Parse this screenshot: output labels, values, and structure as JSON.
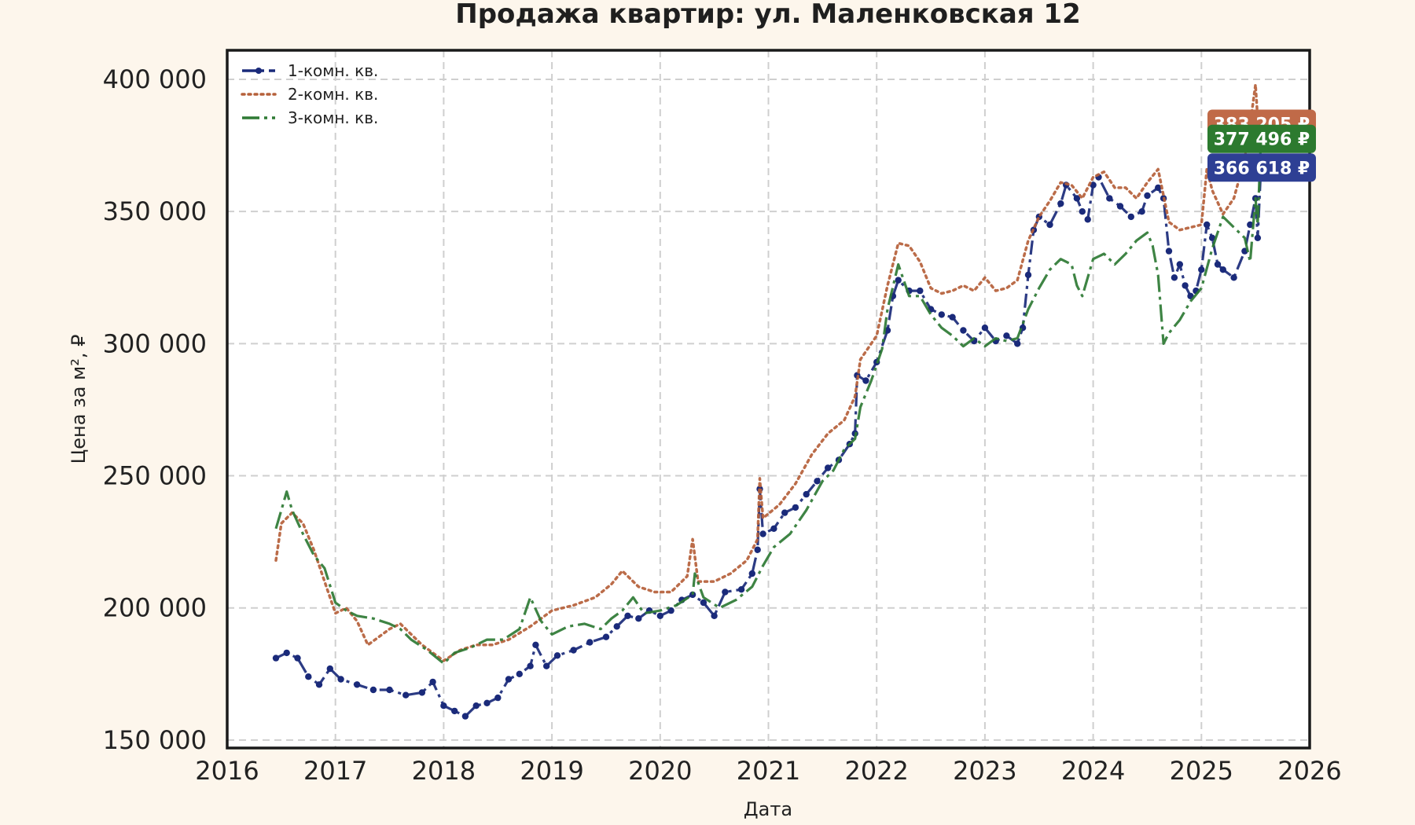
{
  "chart_data": {
    "type": "line",
    "title": "Продажа квартир: ул. Маленковская 12",
    "xlabel": "Дата",
    "ylabel": "Цена за м², ₽",
    "xlim": [
      2016,
      2026
    ],
    "ylim": [
      147000,
      411000
    ],
    "x_ticks": [
      "2016",
      "2017",
      "2018",
      "2019",
      "2020",
      "2021",
      "2022",
      "2023",
      "2024",
      "2025",
      "2026"
    ],
    "y_ticks": [
      {
        "value": 150000,
        "label": "150 000"
      },
      {
        "value": 200000,
        "label": "200 000"
      },
      {
        "value": 250000,
        "label": "250 000"
      },
      {
        "value": 300000,
        "label": "300 000"
      },
      {
        "value": 350000,
        "label": "350 000"
      },
      {
        "value": 400000,
        "label": "400 000"
      }
    ],
    "grid": true,
    "legend_position": "top-left",
    "series": [
      {
        "name": "1-комн. кв.",
        "color": "#1a2a7a",
        "style": "dashdot-markers",
        "last_label": "366 618 ₽",
        "points": [
          [
            2016.45,
            181000
          ],
          [
            2016.55,
            183000
          ],
          [
            2016.65,
            181000
          ],
          [
            2016.75,
            174000
          ],
          [
            2016.85,
            171000
          ],
          [
            2016.95,
            177000
          ],
          [
            2017.05,
            173000
          ],
          [
            2017.2,
            171000
          ],
          [
            2017.35,
            169000
          ],
          [
            2017.5,
            169000
          ],
          [
            2017.65,
            167000
          ],
          [
            2017.8,
            168000
          ],
          [
            2017.9,
            172000
          ],
          [
            2018.0,
            163000
          ],
          [
            2018.1,
            161000
          ],
          [
            2018.2,
            159000
          ],
          [
            2018.3,
            163000
          ],
          [
            2018.4,
            164000
          ],
          [
            2018.5,
            166000
          ],
          [
            2018.6,
            173000
          ],
          [
            2018.7,
            175000
          ],
          [
            2018.8,
            178000
          ],
          [
            2018.85,
            186000
          ],
          [
            2018.95,
            178000
          ],
          [
            2019.05,
            182000
          ],
          [
            2019.2,
            184000
          ],
          [
            2019.35,
            187000
          ],
          [
            2019.5,
            189000
          ],
          [
            2019.6,
            193000
          ],
          [
            2019.7,
            197000
          ],
          [
            2019.8,
            196000
          ],
          [
            2019.9,
            199000
          ],
          [
            2020.0,
            197000
          ],
          [
            2020.1,
            199000
          ],
          [
            2020.2,
            203000
          ],
          [
            2020.3,
            205000
          ],
          [
            2020.4,
            202000
          ],
          [
            2020.5,
            197000
          ],
          [
            2020.6,
            206000
          ],
          [
            2020.75,
            207000
          ],
          [
            2020.85,
            213000
          ],
          [
            2020.9,
            222000
          ],
          [
            2020.92,
            245000
          ],
          [
            2020.95,
            228000
          ],
          [
            2021.05,
            230000
          ],
          [
            2021.15,
            236000
          ],
          [
            2021.25,
            238000
          ],
          [
            2021.35,
            243000
          ],
          [
            2021.45,
            248000
          ],
          [
            2021.55,
            253000
          ],
          [
            2021.65,
            256000
          ],
          [
            2021.75,
            262000
          ],
          [
            2021.8,
            266000
          ],
          [
            2021.82,
            288000
          ],
          [
            2021.9,
            286000
          ],
          [
            2022.0,
            293000
          ],
          [
            2022.1,
            305000
          ],
          [
            2022.15,
            318000
          ],
          [
            2022.2,
            324000
          ],
          [
            2022.3,
            320000
          ],
          [
            2022.4,
            320000
          ],
          [
            2022.5,
            313000
          ],
          [
            2022.6,
            311000
          ],
          [
            2022.7,
            310000
          ],
          [
            2022.8,
            305000
          ],
          [
            2022.9,
            301000
          ],
          [
            2023.0,
            306000
          ],
          [
            2023.1,
            301000
          ],
          [
            2023.2,
            303000
          ],
          [
            2023.3,
            300000
          ],
          [
            2023.35,
            306000
          ],
          [
            2023.4,
            326000
          ],
          [
            2023.45,
            343000
          ],
          [
            2023.5,
            348000
          ],
          [
            2023.6,
            345000
          ],
          [
            2023.7,
            353000
          ],
          [
            2023.75,
            360000
          ],
          [
            2023.85,
            355000
          ],
          [
            2023.9,
            350000
          ],
          [
            2023.95,
            347000
          ],
          [
            2024.0,
            360000
          ],
          [
            2024.05,
            363000
          ],
          [
            2024.15,
            355000
          ],
          [
            2024.25,
            352000
          ],
          [
            2024.35,
            348000
          ],
          [
            2024.45,
            350000
          ],
          [
            2024.5,
            356000
          ],
          [
            2024.6,
            359000
          ],
          [
            2024.65,
            355000
          ],
          [
            2024.7,
            335000
          ],
          [
            2024.75,
            325000
          ],
          [
            2024.8,
            330000
          ],
          [
            2024.85,
            322000
          ],
          [
            2024.9,
            318000
          ],
          [
            2024.95,
            320000
          ],
          [
            2025.0,
            328000
          ],
          [
            2025.05,
            345000
          ],
          [
            2025.1,
            340000
          ],
          [
            2025.15,
            330000
          ],
          [
            2025.2,
            328000
          ],
          [
            2025.3,
            325000
          ],
          [
            2025.4,
            335000
          ],
          [
            2025.45,
            345000
          ],
          [
            2025.5,
            355000
          ],
          [
            2025.52,
            340000
          ],
          [
            2025.55,
            366618
          ]
        ]
      },
      {
        "name": "2-комн. кв.",
        "color": "#b5603a",
        "style": "dotted",
        "last_label": "383 205 ₽",
        "points": [
          [
            2016.45,
            218000
          ],
          [
            2016.5,
            232000
          ],
          [
            2016.6,
            236000
          ],
          [
            2016.7,
            232000
          ],
          [
            2016.8,
            222000
          ],
          [
            2016.9,
            210000
          ],
          [
            2017.0,
            198000
          ],
          [
            2017.1,
            200000
          ],
          [
            2017.2,
            195000
          ],
          [
            2017.3,
            186000
          ],
          [
            2017.4,
            189000
          ],
          [
            2017.5,
            192000
          ],
          [
            2017.6,
            194000
          ],
          [
            2017.7,
            190000
          ],
          [
            2017.8,
            186000
          ],
          [
            2017.9,
            183000
          ],
          [
            2018.0,
            180000
          ],
          [
            2018.15,
            184000
          ],
          [
            2018.3,
            186000
          ],
          [
            2018.45,
            186000
          ],
          [
            2018.6,
            188000
          ],
          [
            2018.8,
            193000
          ],
          [
            2019.0,
            199000
          ],
          [
            2019.2,
            201000
          ],
          [
            2019.4,
            204000
          ],
          [
            2019.55,
            209000
          ],
          [
            2019.65,
            214000
          ],
          [
            2019.8,
            208000
          ],
          [
            2019.95,
            206000
          ],
          [
            2020.1,
            206000
          ],
          [
            2020.25,
            212000
          ],
          [
            2020.3,
            226000
          ],
          [
            2020.35,
            210000
          ],
          [
            2020.5,
            210000
          ],
          [
            2020.65,
            213000
          ],
          [
            2020.8,
            218000
          ],
          [
            2020.9,
            226000
          ],
          [
            2020.92,
            249000
          ],
          [
            2020.95,
            234000
          ],
          [
            2021.1,
            239000
          ],
          [
            2021.25,
            247000
          ],
          [
            2021.4,
            258000
          ],
          [
            2021.55,
            266000
          ],
          [
            2021.7,
            271000
          ],
          [
            2021.8,
            280000
          ],
          [
            2021.85,
            294000
          ],
          [
            2022.0,
            303000
          ],
          [
            2022.1,
            322000
          ],
          [
            2022.2,
            338000
          ],
          [
            2022.3,
            337000
          ],
          [
            2022.4,
            331000
          ],
          [
            2022.5,
            321000
          ],
          [
            2022.6,
            319000
          ],
          [
            2022.7,
            320000
          ],
          [
            2022.8,
            322000
          ],
          [
            2022.9,
            320000
          ],
          [
            2023.0,
            325000
          ],
          [
            2023.1,
            320000
          ],
          [
            2023.2,
            321000
          ],
          [
            2023.3,
            324000
          ],
          [
            2023.4,
            339000
          ],
          [
            2023.5,
            348000
          ],
          [
            2023.6,
            354000
          ],
          [
            2023.7,
            361000
          ],
          [
            2023.8,
            360000
          ],
          [
            2023.9,
            355000
          ],
          [
            2024.0,
            363000
          ],
          [
            2024.1,
            365000
          ],
          [
            2024.2,
            359000
          ],
          [
            2024.3,
            359000
          ],
          [
            2024.4,
            355000
          ],
          [
            2024.5,
            361000
          ],
          [
            2024.6,
            366000
          ],
          [
            2024.65,
            356000
          ],
          [
            2024.7,
            346000
          ],
          [
            2024.8,
            343000
          ],
          [
            2024.9,
            344000
          ],
          [
            2025.0,
            345000
          ],
          [
            2025.05,
            366000
          ],
          [
            2025.1,
            358000
          ],
          [
            2025.2,
            349000
          ],
          [
            2025.3,
            355000
          ],
          [
            2025.4,
            370000
          ],
          [
            2025.45,
            383000
          ],
          [
            2025.5,
            398000
          ],
          [
            2025.52,
            385000
          ],
          [
            2025.55,
            383205
          ]
        ]
      },
      {
        "name": "3-комн. кв.",
        "color": "#2e7a34",
        "style": "dashdot",
        "last_label": "377 496 ₽",
        "points": [
          [
            2016.45,
            230000
          ],
          [
            2016.5,
            237000
          ],
          [
            2016.55,
            244000
          ],
          [
            2016.6,
            237000
          ],
          [
            2016.7,
            228000
          ],
          [
            2016.8,
            220000
          ],
          [
            2016.9,
            215000
          ],
          [
            2017.0,
            202000
          ],
          [
            2017.1,
            199000
          ],
          [
            2017.2,
            197000
          ],
          [
            2017.35,
            196000
          ],
          [
            2017.5,
            194000
          ],
          [
            2017.6,
            192000
          ],
          [
            2017.7,
            188000
          ],
          [
            2017.85,
            184000
          ],
          [
            2018.0,
            179000
          ],
          [
            2018.1,
            183000
          ],
          [
            2018.25,
            185000
          ],
          [
            2018.4,
            188000
          ],
          [
            2018.55,
            188000
          ],
          [
            2018.7,
            192000
          ],
          [
            2018.8,
            204000
          ],
          [
            2018.9,
            195000
          ],
          [
            2019.0,
            190000
          ],
          [
            2019.15,
            193000
          ],
          [
            2019.3,
            194000
          ],
          [
            2019.45,
            192000
          ],
          [
            2019.55,
            196000
          ],
          [
            2019.65,
            199000
          ],
          [
            2019.75,
            204000
          ],
          [
            2019.85,
            198000
          ],
          [
            2020.0,
            199000
          ],
          [
            2020.15,
            201000
          ],
          [
            2020.3,
            205000
          ],
          [
            2020.32,
            213000
          ],
          [
            2020.4,
            204000
          ],
          [
            2020.55,
            200000
          ],
          [
            2020.7,
            203000
          ],
          [
            2020.85,
            208000
          ],
          [
            2020.95,
            216000
          ],
          [
            2021.05,
            223000
          ],
          [
            2021.2,
            228000
          ],
          [
            2021.35,
            237000
          ],
          [
            2021.5,
            248000
          ],
          [
            2021.6,
            252000
          ],
          [
            2021.7,
            260000
          ],
          [
            2021.8,
            264000
          ],
          [
            2021.85,
            276000
          ],
          [
            2021.95,
            286000
          ],
          [
            2022.05,
            298000
          ],
          [
            2022.1,
            313000
          ],
          [
            2022.2,
            330000
          ],
          [
            2022.3,
            318000
          ],
          [
            2022.4,
            318000
          ],
          [
            2022.5,
            311000
          ],
          [
            2022.6,
            306000
          ],
          [
            2022.7,
            303000
          ],
          [
            2022.8,
            299000
          ],
          [
            2022.9,
            302000
          ],
          [
            2023.0,
            299000
          ],
          [
            2023.1,
            302000
          ],
          [
            2023.2,
            301000
          ],
          [
            2023.3,
            302000
          ],
          [
            2023.4,
            313000
          ],
          [
            2023.5,
            321000
          ],
          [
            2023.6,
            328000
          ],
          [
            2023.7,
            332000
          ],
          [
            2023.8,
            330000
          ],
          [
            2023.85,
            322000
          ],
          [
            2023.9,
            318000
          ],
          [
            2024.0,
            332000
          ],
          [
            2024.1,
            334000
          ],
          [
            2024.2,
            330000
          ],
          [
            2024.3,
            334000
          ],
          [
            2024.4,
            339000
          ],
          [
            2024.5,
            342000
          ],
          [
            2024.55,
            337000
          ],
          [
            2024.6,
            326000
          ],
          [
            2024.65,
            300000
          ],
          [
            2024.7,
            304000
          ],
          [
            2024.8,
            309000
          ],
          [
            2024.9,
            316000
          ],
          [
            2025.0,
            321000
          ],
          [
            2025.1,
            336000
          ],
          [
            2025.2,
            348000
          ],
          [
            2025.3,
            344000
          ],
          [
            2025.4,
            340000
          ],
          [
            2025.45,
            331000
          ],
          [
            2025.5,
            355000
          ],
          [
            2025.52,
            345000
          ],
          [
            2025.55,
            377496
          ]
        ]
      }
    ]
  }
}
